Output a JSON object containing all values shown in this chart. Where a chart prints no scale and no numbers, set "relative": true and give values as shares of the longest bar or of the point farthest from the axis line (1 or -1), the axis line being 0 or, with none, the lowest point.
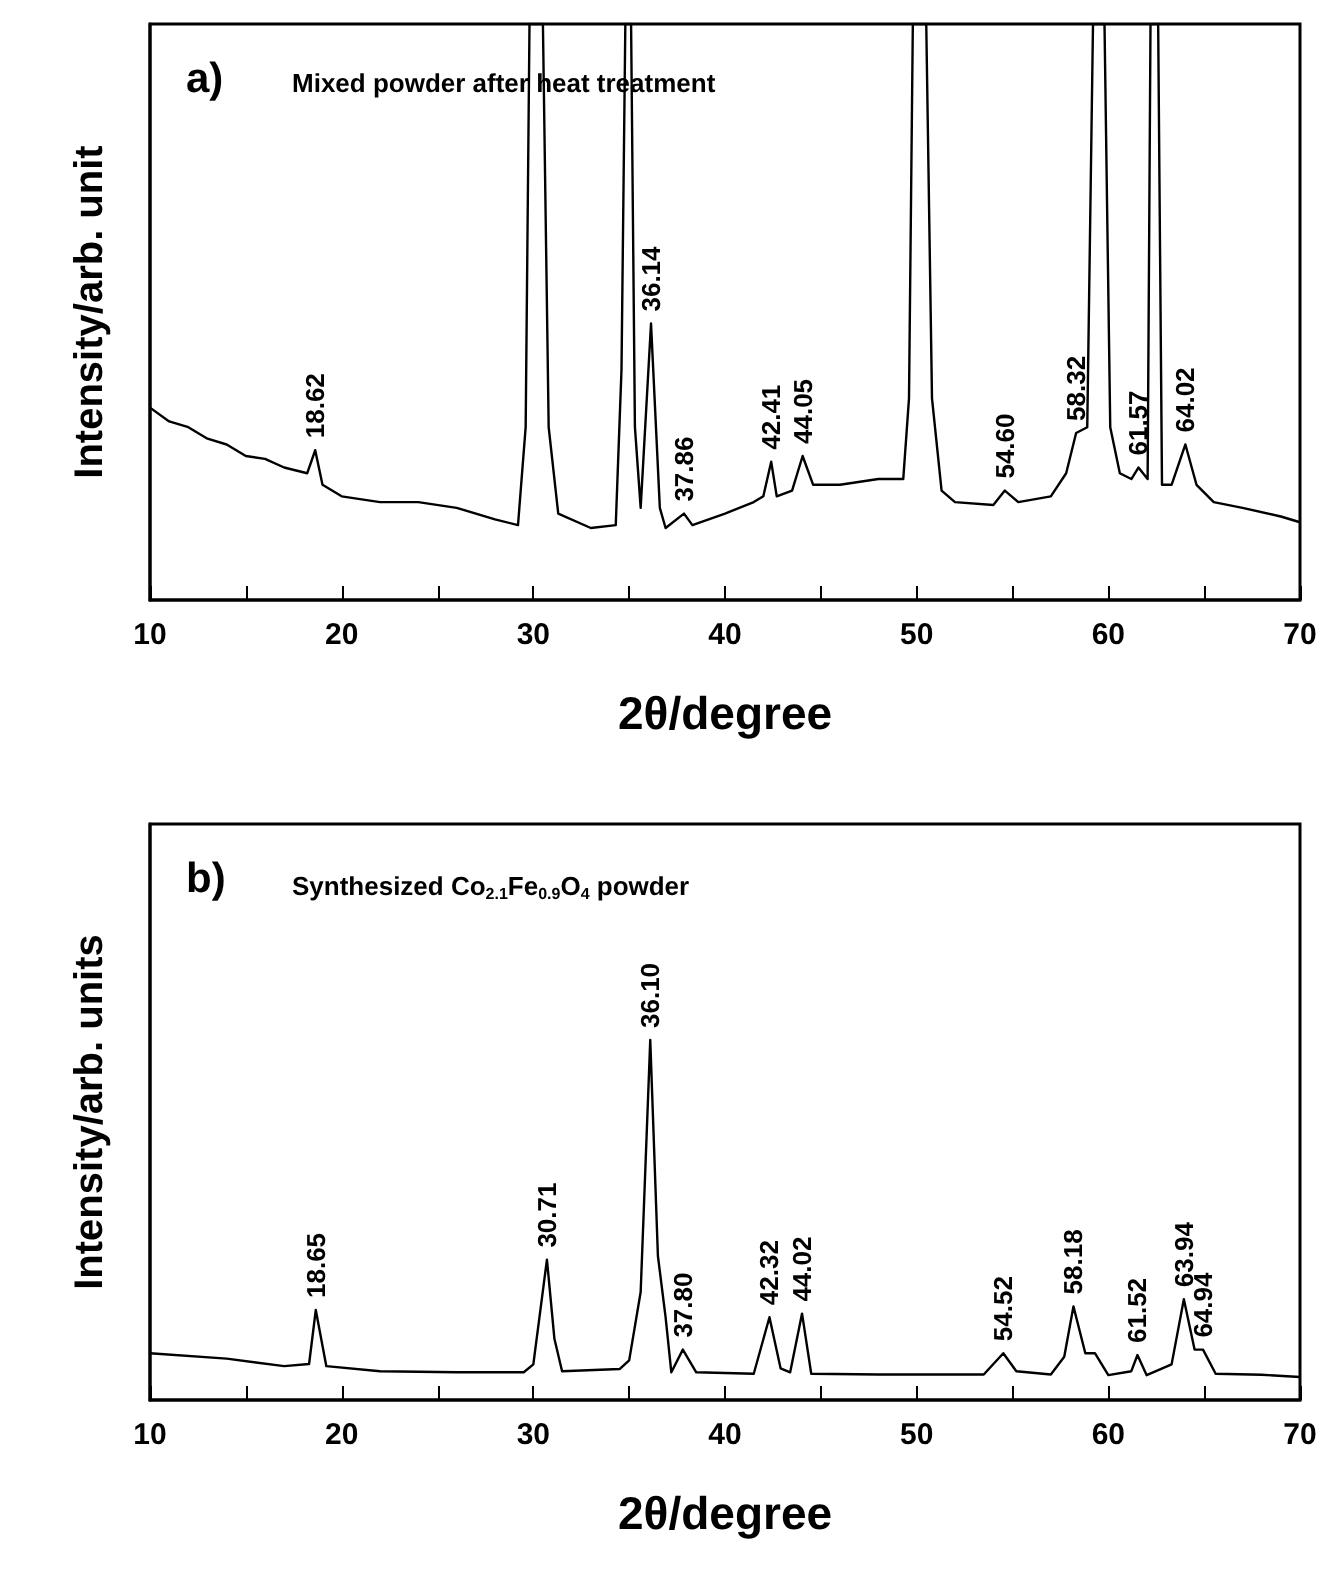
{
  "chart_data": [
    {
      "type": "line",
      "title": "a)",
      "subtitle": "Mixed powder after heat treatment",
      "xlabel": "2θ/degree",
      "ylabel": "Intensity/arb. unit",
      "relative": true,
      "marker": "none",
      "grid": false,
      "xlim": [
        10,
        70
      ],
      "xticks": [
        10,
        {
          "value": 15,
          "label": null
        },
        20,
        {
          "value": 25,
          "label": null
        },
        30,
        {
          "value": 35,
          "label": null
        },
        40,
        {
          "value": 45,
          "label": null
        },
        50,
        {
          "value": 55,
          "label": null
        },
        60,
        {
          "value": 65,
          "label": null
        },
        70
      ],
      "series": [
        {
          "color": "#000000",
          "x": [
            10,
            11,
            12,
            13,
            14,
            15,
            16,
            17,
            18.2,
            18.62,
            19,
            20,
            22,
            24,
            26,
            28,
            29.2,
            29.6,
            29.8,
            30.5,
            30.8,
            31.3,
            33,
            34.3,
            34.6,
            34.8,
            35.1,
            35.3,
            35.6,
            36.14,
            36.6,
            36.9,
            37.86,
            38.3,
            40,
            41.5,
            42,
            42.41,
            42.7,
            43.5,
            44.05,
            44.6,
            46,
            48,
            49.3,
            49.6,
            49.8,
            50.5,
            50.8,
            51.3,
            52,
            54,
            54.6,
            55.3,
            57,
            57.8,
            58.32,
            58.9,
            59.2,
            59.8,
            60.1,
            60.6,
            61.2,
            61.57,
            62.05,
            62.2,
            62.6,
            62.8,
            63.3,
            64.02,
            64.6,
            65.5,
            67,
            69,
            70
          ],
          "values": [
            0.334,
            0.31,
            0.3,
            0.28,
            0.27,
            0.25,
            0.245,
            0.23,
            0.22,
            0.26,
            0.2,
            0.18,
            0.17,
            0.17,
            0.16,
            0.14,
            0.13,
            0.3,
            1,
            1,
            0.3,
            0.15,
            0.125,
            0.13,
            0.4,
            1,
            1,
            0.3,
            0.16,
            0.48,
            0.16,
            0.125,
            0.15,
            0.13,
            0.15,
            0.17,
            0.18,
            0.24,
            0.18,
            0.19,
            0.25,
            0.2,
            0.2,
            0.21,
            0.21,
            0.35,
            1,
            1,
            0.35,
            0.19,
            0.17,
            0.165,
            0.19,
            0.17,
            0.18,
            0.22,
            0.29,
            0.3,
            1,
            1,
            0.3,
            0.22,
            0.21,
            0.23,
            0.21,
            1,
            1,
            0.2,
            0.2,
            0.27,
            0.2,
            0.17,
            0.16,
            0.145,
            0.135
          ]
        }
      ],
      "annotations": [
        {
          "text": "18.62",
          "x": 18.62,
          "y": 0.26
        },
        {
          "text": "36.14",
          "x": 36.14,
          "y": 0.48
        },
        {
          "text": "37.86",
          "x": 37.86,
          "y": 0.15
        },
        {
          "text": "42.41",
          "x": 42.41,
          "y": 0.24
        },
        {
          "text": "44.05",
          "x": 44.05,
          "y": 0.25
        },
        {
          "text": "54.60",
          "x": 54.6,
          "y": 0.19
        },
        {
          "text": "58.32",
          "x": 58.32,
          "y": 0.29
        },
        {
          "text": "61.57",
          "x": 61.57,
          "y": 0.23
        },
        {
          "text": "64.02",
          "x": 64.02,
          "y": 0.27
        }
      ]
    },
    {
      "type": "line",
      "title": "b)",
      "subtitle": "Synthesized Co$_{2.1}$Fe$_{0.9}$O$_{4}$ powder",
      "xlabel": "2θ/degree",
      "ylabel": "Intensity/arb. units",
      "relative": true,
      "marker": "none",
      "grid": false,
      "xlim": [
        10,
        70
      ],
      "xticks": [
        10,
        {
          "value": 15,
          "label": null
        },
        20,
        {
          "value": 25,
          "label": null
        },
        30,
        {
          "value": 35,
          "label": null
        },
        40,
        {
          "value": 45,
          "label": null
        },
        50,
        {
          "value": 55,
          "label": null
        },
        60,
        {
          "value": 65,
          "label": null
        },
        70
      ],
      "series": [
        {
          "color": "#000000",
          "x": [
            10,
            14,
            17,
            18.3,
            18.65,
            19.2,
            22,
            26,
            29.5,
            30.0,
            30.71,
            31.1,
            31.5,
            34.5,
            35.0,
            35.6,
            36.1,
            36.5,
            36.9,
            37.2,
            37.8,
            38.5,
            41.5,
            42.32,
            42.9,
            43.4,
            44.02,
            44.5,
            48,
            53.5,
            54.52,
            55.2,
            57,
            57.7,
            58.18,
            58.8,
            59.3,
            60,
            61.2,
            61.52,
            62,
            63.3,
            63.94,
            64.5,
            64.94,
            65.6,
            68,
            70
          ],
          "values": [
            0.13,
            0.115,
            0.094,
            0.1,
            0.25,
            0.094,
            0.08,
            0.077,
            0.077,
            0.099,
            0.39,
            0.17,
            0.08,
            0.086,
            0.11,
            0.3,
            1,
            0.4,
            0.23,
            0.077,
            0.14,
            0.077,
            0.073,
            0.23,
            0.088,
            0.077,
            0.24,
            0.073,
            0.071,
            0.071,
            0.13,
            0.08,
            0.071,
            0.12,
            0.26,
            0.13,
            0.13,
            0.069,
            0.08,
            0.125,
            0.069,
            0.099,
            0.28,
            0.14,
            0.14,
            0.073,
            0.07,
            0.064
          ]
        }
      ],
      "annotations": [
        {
          "text": "18.65",
          "x": 18.65,
          "y": 0.25
        },
        {
          "text": "30.71",
          "x": 30.71,
          "y": 0.39
        },
        {
          "text": "36.10",
          "x": 36.1,
          "y": 1
        },
        {
          "text": "37.80",
          "x": 37.8,
          "y": 0.14
        },
        {
          "text": "42.32",
          "x": 42.32,
          "y": 0.23
        },
        {
          "text": "44.02",
          "x": 44.02,
          "y": 0.24
        },
        {
          "text": "54.52",
          "x": 54.52,
          "y": 0.13
        },
        {
          "text": "58.18",
          "x": 58.18,
          "y": 0.26
        },
        {
          "text": "61.52",
          "x": 61.52,
          "y": 0.125
        },
        {
          "text": "63.94",
          "x": 63.94,
          "y": 0.28
        },
        {
          "text": "64.94",
          "x": 64.94,
          "y": 0.14
        }
      ]
    }
  ]
}
